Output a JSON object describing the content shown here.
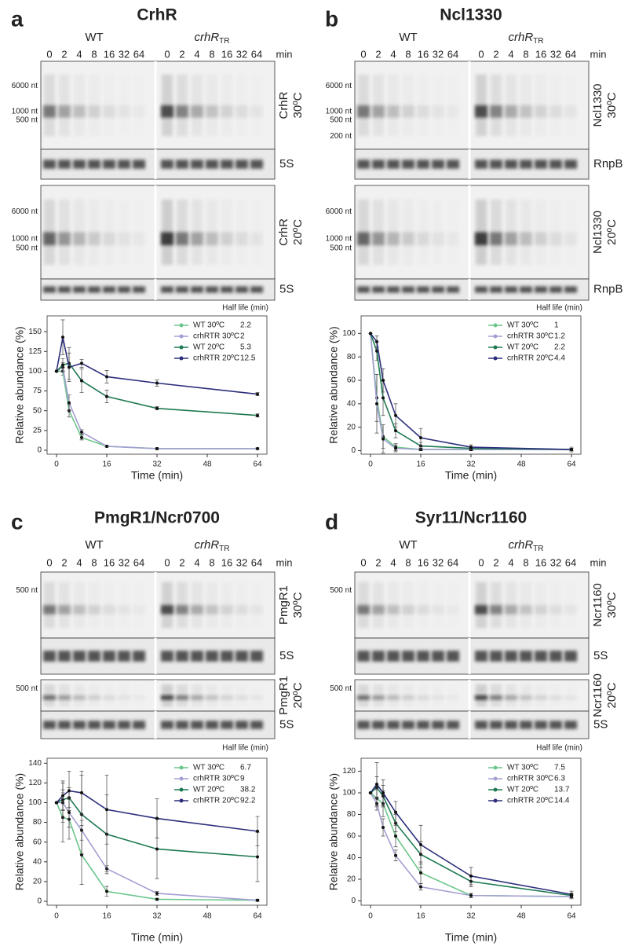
{
  "chart_data": [
    {
      "type": "line",
      "panel": "a",
      "title": "CrhR",
      "blot": {
        "groups": [
          "WT",
          "crhR"
        ],
        "group_subscript": "TR",
        "lanes": [
          0,
          2,
          4,
          8,
          16,
          32,
          64
        ],
        "lane_unit": "min",
        "gene": "CrhR",
        "temps": [
          "30ºC",
          "20ºC"
        ],
        "loading": "5S",
        "markers_top": [
          "6000 nt",
          "1000 nt",
          "500 nt"
        ],
        "markers_bottom": [
          "6000 nt",
          "1000 nt",
          "500 nt"
        ]
      },
      "x": [
        0,
        2,
        4,
        8,
        16,
        32,
        64
      ],
      "xlim": [
        -3,
        67
      ],
      "xticks": [
        0,
        16,
        32,
        48,
        64
      ],
      "ylim": [
        -5,
        170
      ],
      "yticks": [
        0,
        25,
        50,
        75,
        100,
        125,
        150
      ],
      "xlabel": "Time (min)",
      "ylabel": "Relative abundance (%)",
      "legend_title": "Half life (min)",
      "series": [
        {
          "name": "WT 30ºC",
          "color": "#6cc68b",
          "half_life": 2.2,
          "values": [
            100,
            100,
            50,
            16,
            5,
            2,
            2
          ],
          "errors": [
            0,
            5,
            8,
            3,
            1,
            1,
            1
          ]
        },
        {
          "name": "crhRTR 30ºC",
          "color": "#a29fd2",
          "half_life": 2.0,
          "values": [
            100,
            105,
            60,
            23,
            5,
            2,
            2
          ],
          "errors": [
            0,
            6,
            10,
            3,
            1,
            1,
            1
          ]
        },
        {
          "name": "WT 20ºC",
          "color": "#1f7a52",
          "half_life": 5.3,
          "values": [
            100,
            108,
            110,
            88,
            68,
            53,
            44
          ],
          "errors": [
            0,
            8,
            20,
            15,
            8,
            2,
            2
          ]
        },
        {
          "name": "crhRTR 20ºC",
          "color": "#2d2f7c",
          "half_life": 12.5,
          "values": [
            100,
            143,
            105,
            110,
            93,
            85,
            71
          ],
          "errors": [
            0,
            22,
            18,
            5,
            8,
            4,
            2
          ]
        }
      ]
    },
    {
      "type": "line",
      "panel": "b",
      "title": "Ncl1330",
      "blot": {
        "groups": [
          "WT",
          "crhR"
        ],
        "group_subscript": "TR",
        "lanes": [
          0,
          2,
          4,
          8,
          16,
          32,
          64
        ],
        "lane_unit": "min",
        "gene": "Ncl1330",
        "temps": [
          "30ºC",
          "20ºC"
        ],
        "loading": "RnpB",
        "markers_top": [
          "6000 nt",
          "1000 nt",
          "500 nt",
          "200 nt"
        ],
        "markers_bottom": [
          "6000 nt",
          "1000 nt",
          "500 nt"
        ]
      },
      "x": [
        0,
        2,
        4,
        8,
        16,
        32,
        64
      ],
      "xlim": [
        -3,
        67
      ],
      "xticks": [
        0,
        16,
        32,
        48,
        64
      ],
      "ylim": [
        -3,
        115
      ],
      "yticks": [
        0,
        20,
        40,
        60,
        80,
        100
      ],
      "xlabel": "Time (min)",
      "ylabel": "Relative abundance (%)",
      "legend_title": "Half life (min)",
      "series": [
        {
          "name": "WT 30ºC",
          "color": "#6cc68b",
          "half_life": 1.0,
          "values": [
            100,
            45,
            12,
            3,
            1,
            1,
            1
          ],
          "errors": [
            0,
            20,
            10,
            3,
            1,
            1,
            1
          ]
        },
        {
          "name": "crhRTR 30ºC",
          "color": "#a29fd2",
          "half_life": 1.2,
          "values": [
            100,
            40,
            10,
            2,
            1,
            1,
            1
          ],
          "errors": [
            0,
            25,
            12,
            3,
            1,
            1,
            1
          ]
        },
        {
          "name": "WT 20ºC",
          "color": "#1f7a52",
          "half_life": 2.2,
          "values": [
            100,
            85,
            45,
            17,
            4,
            2,
            1
          ],
          "errors": [
            0,
            8,
            15,
            6,
            3,
            1,
            1
          ]
        },
        {
          "name": "crhRTR 20ºC",
          "color": "#2d2f7c",
          "half_life": 4.4,
          "values": [
            100,
            93,
            60,
            30,
            11,
            3,
            1
          ],
          "errors": [
            0,
            5,
            10,
            10,
            8,
            2,
            2
          ]
        }
      ]
    },
    {
      "type": "line",
      "panel": "c",
      "title": "PmgR1/Ncr0700",
      "blot": {
        "groups": [
          "WT",
          "crhR"
        ],
        "group_subscript": "TR",
        "lanes": [
          0,
          2,
          4,
          8,
          16,
          32,
          64
        ],
        "lane_unit": "min",
        "gene": "PmgR1",
        "temps": [
          "30ºC",
          "20ºC"
        ],
        "loading": "5S",
        "markers_top": [
          "500 nt"
        ],
        "markers_bottom": [
          "500 nt"
        ]
      },
      "x": [
        0,
        2,
        4,
        8,
        16,
        32,
        64
      ],
      "xlim": [
        -3,
        67
      ],
      "xticks": [
        0,
        16,
        32,
        48,
        64
      ],
      "ylim": [
        -4,
        145
      ],
      "yticks": [
        0,
        20,
        40,
        60,
        80,
        100,
        120,
        140
      ],
      "xlabel": "Time (min)",
      "ylabel": "Relative abundance (%)",
      "legend_title": "Half life (min)",
      "series": [
        {
          "name": "WT 30ºC",
          "color": "#6cc68b",
          "half_life": 6.7,
          "values": [
            100,
            85,
            83,
            47,
            10,
            2,
            1
          ],
          "errors": [
            0,
            25,
            20,
            30,
            5,
            1,
            1
          ]
        },
        {
          "name": "crhRTR 30ºC",
          "color": "#a29fd2",
          "half_life": 9.0,
          "values": [
            100,
            100,
            90,
            72,
            33,
            8,
            1
          ],
          "errors": [
            0,
            20,
            15,
            10,
            3,
            2,
            1
          ]
        },
        {
          "name": "WT 20ºC",
          "color": "#1f7a52",
          "half_life": 38.2,
          "values": [
            100,
            103,
            105,
            88,
            68,
            53,
            45
          ],
          "errors": [
            0,
            10,
            10,
            40,
            40,
            30,
            25
          ]
        },
        {
          "name": "crhRTR 20ºC",
          "color": "#2d2f7c",
          "half_life": 92.2,
          "values": [
            100,
            107,
            112,
            110,
            93,
            84,
            71
          ],
          "errors": [
            0,
            15,
            20,
            22,
            35,
            20,
            15
          ]
        }
      ]
    },
    {
      "type": "line",
      "panel": "d",
      "title": "Syr11/Ncr1160",
      "blot": {
        "groups": [
          "WT",
          "crhR"
        ],
        "group_subscript": "TR",
        "lanes": [
          0,
          2,
          4,
          8,
          16,
          32,
          64
        ],
        "lane_unit": "min",
        "gene": "Ncr1160",
        "temps": [
          "30ºC",
          "20ºC"
        ],
        "loading": "5S",
        "markers_top": [
          "500 nt"
        ],
        "markers_bottom": [
          "500 nt"
        ]
      },
      "x": [
        0,
        2,
        4,
        8,
        16,
        32,
        64
      ],
      "xlim": [
        -3,
        67
      ],
      "xticks": [
        0,
        16,
        32,
        48,
        64
      ],
      "ylim": [
        -4,
        132
      ],
      "yticks": [
        0,
        20,
        40,
        60,
        80,
        100,
        120
      ],
      "xlabel": "Time (min)",
      "ylabel": "Relative abundance (%)",
      "legend_title": "Half life (min)",
      "series": [
        {
          "name": "WT 30ºC",
          "color": "#6cc68b",
          "half_life": 7.5,
          "values": [
            100,
            95,
            90,
            60,
            26,
            5,
            4
          ],
          "errors": [
            0,
            8,
            12,
            10,
            10,
            2,
            2
          ]
        },
        {
          "name": "crhRTR 30ºC",
          "color": "#a29fd2",
          "half_life": 6.3,
          "values": [
            100,
            90,
            68,
            42,
            13,
            5,
            4
          ],
          "errors": [
            0,
            6,
            8,
            5,
            3,
            2,
            1
          ]
        },
        {
          "name": "WT 20ºC",
          "color": "#1f7a52",
          "half_life": 13.7,
          "values": [
            100,
            105,
            97,
            72,
            43,
            18,
            5
          ],
          "errors": [
            0,
            10,
            10,
            8,
            12,
            5,
            2
          ]
        },
        {
          "name": "crhRTR 20ºC",
          "color": "#2d2f7c",
          "half_life": 14.4,
          "values": [
            100,
            108,
            100,
            82,
            52,
            23,
            6
          ],
          "errors": [
            0,
            20,
            12,
            10,
            18,
            8,
            3
          ]
        }
      ]
    }
  ]
}
